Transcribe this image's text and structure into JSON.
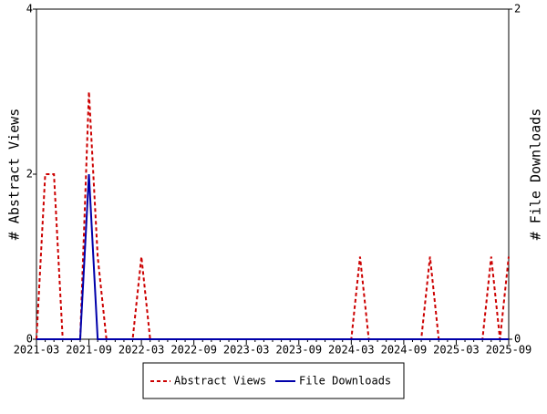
{
  "chart_data": {
    "type": "line",
    "categories": [
      "2021-03",
      null,
      null,
      null,
      null,
      null,
      "2021-09",
      null,
      null,
      null,
      null,
      null,
      "2022-03",
      null,
      null,
      null,
      null,
      null,
      "2022-09",
      null,
      null,
      null,
      null,
      null,
      "2023-03",
      null,
      null,
      null,
      null,
      null,
      "2023-09",
      null,
      null,
      null,
      null,
      null,
      "2024-03",
      null,
      null,
      null,
      null,
      null,
      "2024-09",
      null,
      null,
      null,
      null,
      null,
      "2025-03",
      null,
      null,
      null,
      null,
      null,
      "2025-09"
    ],
    "series": [
      {
        "name": "Abstract Views",
        "color": "#cc0000",
        "dashed": true,
        "values": [
          0,
          2,
          2,
          0,
          0,
          0,
          3,
          1,
          0,
          0,
          0,
          0,
          1,
          0,
          0,
          0,
          0,
          0,
          0,
          0,
          0,
          0,
          0,
          0,
          0,
          0,
          0,
          0,
          0,
          0,
          0,
          0,
          0,
          0,
          0,
          0,
          0,
          1,
          0,
          0,
          0,
          0,
          0,
          0,
          0,
          1,
          0,
          0,
          0,
          0,
          0,
          0,
          1,
          0,
          1
        ]
      },
      {
        "name": "File Downloads",
        "color": "#0000aa",
        "dashed": false,
        "axis": "y2",
        "values": [
          0,
          0,
          0,
          0,
          0,
          0,
          1,
          0,
          0,
          0,
          0,
          0,
          0,
          0,
          0,
          0,
          0,
          0,
          0,
          0,
          0,
          0,
          0,
          0,
          0,
          0,
          0,
          0,
          0,
          0,
          0,
          0,
          0,
          0,
          0,
          0,
          0,
          0,
          0,
          0,
          0,
          0,
          0,
          0,
          0,
          0,
          0,
          0,
          0,
          0,
          0,
          0,
          0,
          0,
          0
        ]
      }
    ],
    "ylabel": "# Abstract Views",
    "y2label": "# File Downloads",
    "ylim": [
      0,
      4
    ],
    "yticks": [
      0,
      2,
      4
    ],
    "y2lim": [
      0,
      2
    ],
    "y2ticks": [
      0,
      2
    ],
    "legend": "bottom"
  }
}
